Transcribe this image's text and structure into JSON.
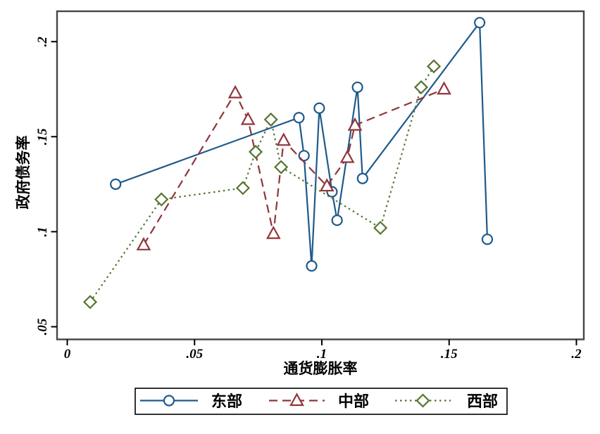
{
  "chart_data": {
    "type": "line",
    "title": "",
    "xlabel": "通货膨胀率",
    "ylabel": "政府债务率",
    "xlim": [
      0,
      0.2
    ],
    "ylim": [
      0.05,
      0.2
    ],
    "grid": false,
    "legend_position": "bottom-outside-boxed",
    "x_ticks": [
      0,
      0.05,
      0.1,
      0.15,
      0.2
    ],
    "x_tick_labels": [
      "0",
      ".05",
      ".1",
      ".15",
      ".2"
    ],
    "y_ticks": [
      0.05,
      0.1,
      0.15,
      0.2
    ],
    "y_tick_labels": [
      ".05",
      ".1",
      ".15",
      ".2"
    ],
    "axis_color": "#454545",
    "series": [
      {
        "name": "东部",
        "color": "#1e5a8a",
        "line_style": "solid",
        "marker": "circle",
        "points": [
          [
            0.019,
            0.125
          ],
          [
            0.091,
            0.16
          ],
          [
            0.093,
            0.14
          ],
          [
            0.096,
            0.082
          ],
          [
            0.099,
            0.165
          ],
          [
            0.104,
            0.121
          ],
          [
            0.106,
            0.106
          ],
          [
            0.114,
            0.176
          ],
          [
            0.116,
            0.128
          ],
          [
            0.162,
            0.21
          ],
          [
            0.165,
            0.096
          ]
        ]
      },
      {
        "name": "中部",
        "color": "#90353b",
        "line_style": "dashed",
        "marker": "triangle",
        "points": [
          [
            0.03,
            0.093
          ],
          [
            0.066,
            0.173
          ],
          [
            0.071,
            0.159
          ],
          [
            0.081,
            0.099
          ],
          [
            0.085,
            0.148
          ],
          [
            0.102,
            0.124
          ],
          [
            0.11,
            0.139
          ],
          [
            0.113,
            0.156
          ],
          [
            0.148,
            0.175
          ]
        ]
      },
      {
        "name": "西部",
        "color": "#55752f",
        "line_style": "dotted",
        "marker": "diamond",
        "points": [
          [
            0.009,
            0.063
          ],
          [
            0.037,
            0.117
          ],
          [
            0.069,
            0.123
          ],
          [
            0.074,
            0.142
          ],
          [
            0.08,
            0.159
          ],
          [
            0.084,
            0.134
          ],
          [
            0.123,
            0.102
          ],
          [
            0.139,
            0.176
          ],
          [
            0.144,
            0.187
          ]
        ]
      }
    ]
  }
}
